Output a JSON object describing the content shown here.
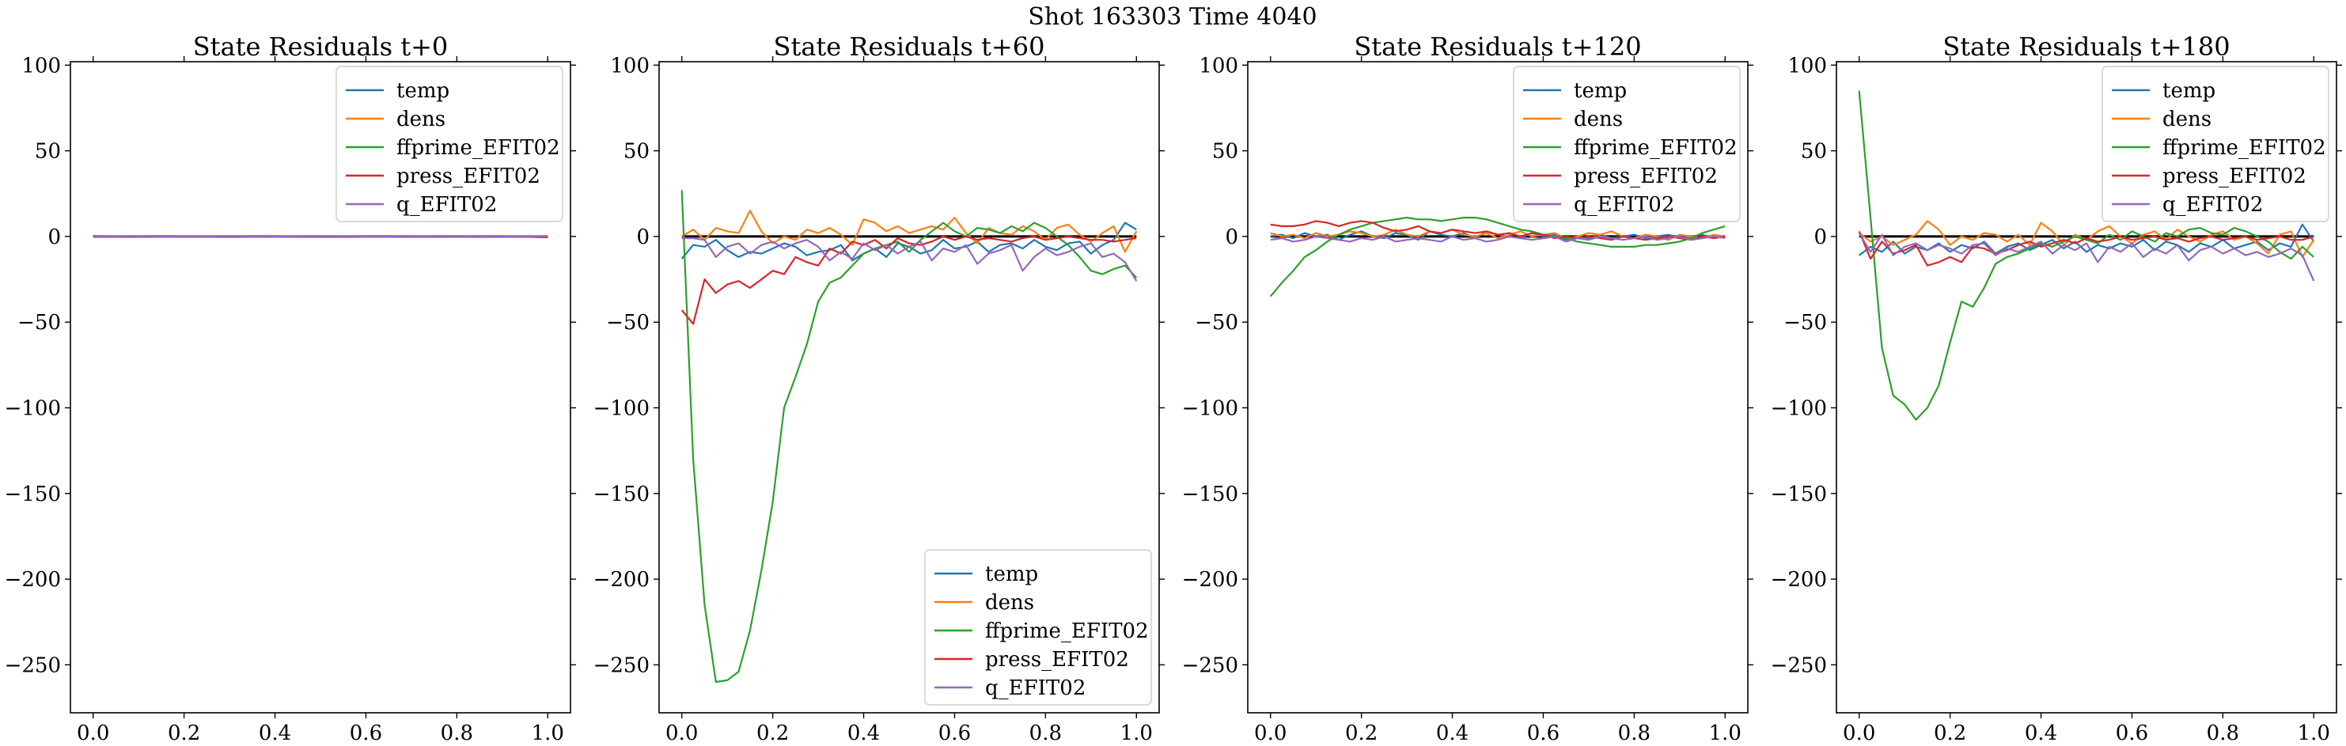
{
  "figure": {
    "title": "Shot 163303   Time 4040"
  },
  "chart_data": [
    {
      "type": "line",
      "title": "State Residuals t+0",
      "xlabel": "",
      "ylabel": "",
      "xlim": [
        -0.05,
        1.05
      ],
      "ylim": [
        -278,
        102
      ],
      "xticks": [
        0.0,
        0.2,
        0.4,
        0.6,
        0.8,
        1.0
      ],
      "xtick_labels": [
        "0.0",
        "0.2",
        "0.4",
        "0.6",
        "0.8",
        "1.0"
      ],
      "yticks": [
        -250,
        -200,
        -150,
        -100,
        -50,
        0,
        50,
        100
      ],
      "ytick_labels": [
        "−250",
        "−200",
        "−150",
        "−100",
        "−50",
        "0",
        "50",
        "100"
      ],
      "grid": false,
      "legend_position": "top-right",
      "x": [
        0.0,
        0.05,
        0.1,
        0.15,
        0.2,
        0.25,
        0.3,
        0.35,
        0.4,
        0.45,
        0.5,
        0.55,
        0.6,
        0.65,
        0.7,
        0.75,
        0.8,
        0.85,
        0.9,
        0.95,
        1.0
      ],
      "series": [
        {
          "name": "temp",
          "color": "#1f77b4",
          "values": [
            0.2,
            0.1,
            0.0,
            0.1,
            -0.1,
            0.0,
            0.1,
            -0.1,
            0.0,
            0.1,
            0.0,
            -0.1,
            0.1,
            0.0,
            0.0,
            -0.1,
            0.1,
            0.0,
            0.0,
            0.1,
            0.2
          ]
        },
        {
          "name": "dens",
          "color": "#ff7f0e",
          "values": [
            0.1,
            0.0,
            0.1,
            -0.1,
            0.0,
            0.1,
            0.0,
            -0.1,
            0.1,
            0.0,
            0.0,
            0.1,
            -0.1,
            0.0,
            0.1,
            0.0,
            -0.1,
            0.0,
            0.1,
            0.0,
            0.1
          ]
        },
        {
          "name": "ffprime_EFIT02",
          "color": "#2ca02c",
          "values": [
            0.3,
            0.1,
            -0.1,
            0.0,
            0.1,
            -0.2,
            0.0,
            0.1,
            -0.1,
            0.0,
            0.1,
            0.0,
            -0.1,
            0.0,
            0.1,
            0.0,
            -0.1,
            0.0,
            0.1,
            -0.1,
            -0.3
          ]
        },
        {
          "name": "press_EFIT02",
          "color": "#d62728",
          "values": [
            0.0,
            -0.1,
            0.1,
            0.0,
            -0.1,
            0.0,
            0.1,
            -0.1,
            0.0,
            0.0,
            0.1,
            -0.1,
            0.0,
            0.1,
            0.0,
            -0.1,
            0.0,
            0.1,
            0.0,
            -0.2,
            -0.5
          ]
        },
        {
          "name": "q_EFIT02",
          "color": "#9467bd",
          "values": [
            0.0,
            0.0,
            0.1,
            -0.1,
            0.0,
            0.0,
            0.1,
            0.0,
            -0.1,
            0.0,
            0.0,
            0.1,
            0.0,
            -0.1,
            0.0,
            0.0,
            0.1,
            0.0,
            -0.1,
            0.0,
            0.0
          ]
        }
      ]
    },
    {
      "type": "line",
      "title": "State Residuals t+60",
      "xlabel": "",
      "ylabel": "",
      "xlim": [
        -0.05,
        1.05
      ],
      "ylim": [
        -278,
        102
      ],
      "xticks": [
        0.0,
        0.2,
        0.4,
        0.6,
        0.8,
        1.0
      ],
      "xtick_labels": [
        "0.0",
        "0.2",
        "0.4",
        "0.6",
        "0.8",
        "1.0"
      ],
      "yticks": [
        -250,
        -200,
        -150,
        -100,
        -50,
        0,
        50,
        100
      ],
      "ytick_labels": [
        "−250",
        "−200",
        "−150",
        "−100",
        "−50",
        "0",
        "50",
        "100"
      ],
      "grid": false,
      "legend_position": "bottom-right",
      "x": [
        0.0,
        0.025,
        0.05,
        0.075,
        0.1,
        0.125,
        0.15,
        0.175,
        0.2,
        0.225,
        0.25,
        0.275,
        0.3,
        0.325,
        0.35,
        0.375,
        0.4,
        0.425,
        0.45,
        0.475,
        0.5,
        0.525,
        0.55,
        0.575,
        0.6,
        0.625,
        0.65,
        0.675,
        0.7,
        0.725,
        0.75,
        0.775,
        0.8,
        0.825,
        0.85,
        0.875,
        0.9,
        0.925,
        0.95,
        0.975,
        1.0
      ],
      "series": [
        {
          "name": "temp",
          "color": "#1f77b4",
          "values": [
            -13,
            -5,
            -6,
            -2,
            -8,
            -12,
            -9,
            -10,
            -7,
            -4,
            -6,
            -11,
            -9,
            -8,
            -5,
            -14,
            -10,
            -7,
            -12,
            -4,
            -6,
            -10,
            -8,
            -2,
            -7,
            -6,
            -3,
            -9,
            -5,
            -4,
            -7,
            -2,
            -6,
            -8,
            -4,
            -3,
            -10,
            -5,
            -2,
            8,
            4
          ]
        },
        {
          "name": "dens",
          "color": "#ff7f0e",
          "values": [
            0,
            4,
            -2,
            5,
            3,
            2,
            15,
            3,
            -4,
            0,
            -2,
            4,
            2,
            5,
            1,
            -5,
            10,
            8,
            3,
            6,
            2,
            4,
            6,
            4,
            11,
            2,
            -4,
            5,
            2,
            1,
            6,
            3,
            -2,
            5,
            7,
            1,
            -3,
            2,
            6,
            -9,
            3
          ]
        },
        {
          "name": "ffprime_EFIT02",
          "color": "#2ca02c",
          "values": [
            27,
            -130,
            -215,
            -260,
            -259,
            -254,
            -230,
            -195,
            -155,
            -100,
            -82,
            -63,
            -38,
            -27,
            -24,
            -17,
            -10,
            -7,
            -5,
            -3,
            -9,
            -2,
            3,
            8,
            3,
            0,
            5,
            4,
            2,
            6,
            3,
            8,
            5,
            0,
            -5,
            -12,
            -20,
            -22,
            -19,
            -17,
            -24
          ]
        },
        {
          "name": "press_EFIT02",
          "color": "#d62728",
          "values": [
            -43,
            -51,
            -25,
            -33,
            -28,
            -26,
            -30,
            -25,
            -20,
            -22,
            -12,
            -15,
            -17,
            -7,
            -10,
            -3,
            -5,
            -2,
            -7,
            -1,
            -4,
            -5,
            -3,
            0,
            -2,
            0,
            -2,
            -1,
            -2,
            -3,
            -1,
            0,
            -2,
            -1,
            0,
            -1,
            -2,
            -2,
            -3,
            -2,
            -1
          ]
        },
        {
          "name": "q_EFIT02",
          "color": "#9467bd",
          "values": [
            -1,
            -1,
            -2,
            -12,
            -6,
            -4,
            -10,
            -5,
            -3,
            -7,
            -4,
            -2,
            -6,
            -14,
            -9,
            -13,
            -4,
            -8,
            -5,
            -10,
            -6,
            -3,
            -14,
            -7,
            -9,
            -5,
            -16,
            -10,
            -8,
            -5,
            -20,
            -12,
            -7,
            -11,
            -9,
            -6,
            -4,
            -12,
            -10,
            -15,
            -26
          ]
        }
      ]
    },
    {
      "type": "line",
      "title": "State Residuals t+120",
      "xlabel": "",
      "ylabel": "",
      "xlim": [
        -0.05,
        1.05
      ],
      "ylim": [
        -278,
        102
      ],
      "xticks": [
        0.0,
        0.2,
        0.4,
        0.6,
        0.8,
        1.0
      ],
      "xtick_labels": [
        "0.0",
        "0.2",
        "0.4",
        "0.6",
        "0.8",
        "1.0"
      ],
      "yticks": [
        -250,
        -200,
        -150,
        -100,
        -50,
        0,
        50,
        100
      ],
      "ytick_labels": [
        "−250",
        "−200",
        "−150",
        "−100",
        "−50",
        "0",
        "50",
        "100"
      ],
      "grid": false,
      "legend_position": "top-right",
      "x": [
        0.0,
        0.025,
        0.05,
        0.075,
        0.1,
        0.125,
        0.15,
        0.175,
        0.2,
        0.225,
        0.25,
        0.275,
        0.3,
        0.325,
        0.35,
        0.375,
        0.4,
        0.425,
        0.45,
        0.475,
        0.5,
        0.525,
        0.55,
        0.575,
        0.6,
        0.625,
        0.65,
        0.675,
        0.7,
        0.725,
        0.75,
        0.775,
        0.8,
        0.825,
        0.85,
        0.875,
        0.9,
        0.925,
        0.95,
        0.975,
        1.0
      ],
      "series": [
        {
          "name": "temp",
          "color": "#1f77b4",
          "values": [
            0,
            1,
            -1,
            2,
            0,
            1,
            -2,
            1,
            3,
            0,
            -1,
            2,
            1,
            -2,
            3,
            1,
            0,
            2,
            -1,
            3,
            1,
            0,
            -1,
            2,
            0,
            1,
            -2,
            0,
            -1,
            1,
            -1,
            0,
            1,
            -1,
            0,
            1,
            -1,
            0,
            1,
            -1,
            0
          ]
        },
        {
          "name": "dens",
          "color": "#ff7f0e",
          "values": [
            2,
            0,
            1,
            -1,
            2,
            0,
            1,
            3,
            2,
            0,
            1,
            4,
            1,
            0,
            3,
            2,
            4,
            1,
            0,
            2,
            -1,
            1,
            3,
            0,
            1,
            2,
            -1,
            0,
            2,
            1,
            3,
            0,
            -1,
            1,
            0,
            -2,
            1,
            0,
            -1,
            1,
            0
          ]
        },
        {
          "name": "ffprime_EFIT02",
          "color": "#2ca02c",
          "values": [
            -35,
            -27,
            -20,
            -12,
            -8,
            -3,
            1,
            4,
            6,
            8,
            9,
            10,
            11,
            10,
            10,
            9,
            10,
            11,
            11,
            10,
            8,
            6,
            4,
            3,
            1,
            0,
            -1,
            -3,
            -4,
            -5,
            -6,
            -6,
            -6,
            -5,
            -5,
            -4,
            -3,
            -1,
            2,
            4,
            6
          ]
        },
        {
          "name": "press_EFIT02",
          "color": "#d62728",
          "values": [
            7,
            6,
            6,
            7,
            9,
            8,
            6,
            8,
            9,
            8,
            5,
            3,
            4,
            6,
            3,
            2,
            4,
            3,
            2,
            3,
            1,
            2,
            0,
            2,
            1,
            -1,
            0,
            -1,
            0,
            -1,
            -2,
            0,
            -1,
            -2,
            -1,
            0,
            -1,
            -2,
            0,
            -1,
            0
          ]
        },
        {
          "name": "q_EFIT02",
          "color": "#9467bd",
          "values": [
            -2,
            -1,
            -3,
            -2,
            0,
            -1,
            -2,
            -3,
            -1,
            -2,
            0,
            -3,
            -2,
            -1,
            -2,
            -3,
            0,
            -2,
            -1,
            -3,
            -2,
            0,
            -1,
            -2,
            -1,
            0,
            -3,
            -1,
            -2,
            0,
            -1,
            -2,
            -1,
            0,
            -2,
            -1,
            0,
            -2,
            -1,
            0,
            -1
          ]
        }
      ]
    },
    {
      "type": "line",
      "title": "State Residuals t+180",
      "xlabel": "",
      "ylabel": "",
      "xlim": [
        -0.05,
        1.05
      ],
      "ylim": [
        -278,
        102
      ],
      "xticks": [
        0.0,
        0.2,
        0.4,
        0.6,
        0.8,
        1.0
      ],
      "xtick_labels": [
        "0.0",
        "0.2",
        "0.4",
        "0.6",
        "0.8",
        "1.0"
      ],
      "yticks": [
        -250,
        -200,
        -150,
        -100,
        -50,
        0,
        50,
        100
      ],
      "ytick_labels": [
        "−250",
        "−200",
        "−150",
        "−100",
        "−50",
        "0",
        "50",
        "100"
      ],
      "grid": false,
      "legend_position": "top-right",
      "x": [
        0.0,
        0.025,
        0.05,
        0.075,
        0.1,
        0.125,
        0.15,
        0.175,
        0.2,
        0.225,
        0.25,
        0.275,
        0.3,
        0.325,
        0.35,
        0.375,
        0.4,
        0.425,
        0.45,
        0.475,
        0.5,
        0.525,
        0.55,
        0.575,
        0.6,
        0.625,
        0.65,
        0.675,
        0.7,
        0.725,
        0.75,
        0.775,
        0.8,
        0.825,
        0.85,
        0.875,
        0.9,
        0.925,
        0.95,
        0.975,
        1.0
      ],
      "series": [
        {
          "name": "temp",
          "color": "#1f77b4",
          "values": [
            -11,
            -6,
            -9,
            -3,
            -10,
            -6,
            -8,
            -4,
            -9,
            -5,
            -7,
            -3,
            -10,
            -6,
            -4,
            -8,
            -5,
            -2,
            -7,
            -3,
            -9,
            -5,
            -7,
            -4,
            -6,
            -2,
            -8,
            -3,
            -5,
            -9,
            -4,
            -6,
            -2,
            -7,
            -5,
            -3,
            -8,
            -4,
            -6,
            7,
            -3
          ]
        },
        {
          "name": "dens",
          "color": "#ff7f0e",
          "values": [
            2,
            -3,
            0,
            -5,
            -2,
            1,
            9,
            4,
            -5,
            0,
            -2,
            2,
            1,
            -3,
            1,
            -5,
            8,
            3,
            -5,
            1,
            -2,
            3,
            6,
            0,
            -4,
            1,
            3,
            -2,
            4,
            0,
            -3,
            1,
            3,
            -2,
            0,
            -4,
            -10,
            1,
            3,
            -12,
            -2
          ]
        },
        {
          "name": "ffprime_EFIT02",
          "color": "#2ca02c",
          "values": [
            85,
            11,
            -65,
            -93,
            -98,
            -107,
            -100,
            -87,
            -62,
            -38,
            -41,
            -30,
            -16,
            -12,
            -10,
            -7,
            -4,
            -6,
            -3,
            0,
            -2,
            -4,
            1,
            -2,
            3,
            0,
            -3,
            2,
            0,
            4,
            5,
            2,
            1,
            5,
            3,
            0,
            -3,
            -9,
            -13,
            -6,
            -12
          ]
        },
        {
          "name": "press_EFIT02",
          "color": "#d62728",
          "values": [
            3,
            -13,
            -3,
            -10,
            -8,
            -5,
            -17,
            -15,
            -12,
            -15,
            -6,
            -7,
            -10,
            -8,
            -5,
            -3,
            -6,
            -4,
            -2,
            -4,
            -1,
            -3,
            -2,
            0,
            -2,
            -1,
            0,
            -2,
            -1,
            -3,
            -1,
            0,
            -2,
            -1,
            0,
            -2,
            -1,
            0,
            -2,
            -2,
            0
          ]
        },
        {
          "name": "q_EFIT02",
          "color": "#9467bd",
          "values": [
            2,
            -9,
            1,
            -11,
            -6,
            -4,
            -8,
            -5,
            -7,
            -10,
            -5,
            -4,
            -11,
            -7,
            -9,
            -6,
            -3,
            -10,
            -5,
            -8,
            -4,
            -15,
            -6,
            -9,
            -4,
            -12,
            -7,
            -10,
            -5,
            -14,
            -8,
            -6,
            -10,
            -7,
            -11,
            -9,
            -12,
            -10,
            -7,
            -11,
            -26
          ]
        }
      ]
    }
  ]
}
